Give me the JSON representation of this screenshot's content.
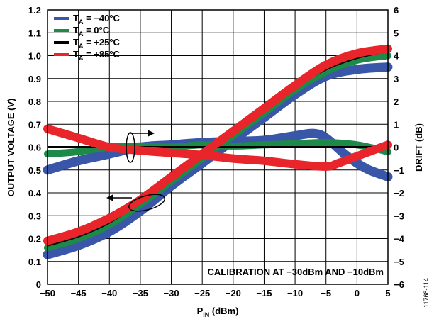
{
  "chart_data": {
    "type": "line",
    "xlabel": "P",
    "xlabel_sub": "IN",
    "xlabel_unit": " (dBm)",
    "ylabel_left": "OUTPUT VOLTAGE (V)",
    "ylabel_right": "DRIFT (dB)",
    "xlim": [
      -50,
      5
    ],
    "ylim_left": [
      0,
      1.2
    ],
    "ylim_right": [
      -6,
      6
    ],
    "grid": true,
    "legend_position": "top-left",
    "x_ticks": [
      "−50",
      "−45",
      "−40",
      "−35",
      "−30",
      "−25",
      "−20",
      "−15",
      "−10",
      "−5",
      "0",
      "5"
    ],
    "y_left_ticks": [
      "0",
      "0.1",
      "0.2",
      "0.3",
      "0.4",
      "0.5",
      "0.6",
      "0.7",
      "0.8",
      "0.9",
      "1.0",
      "1.1",
      "1.2"
    ],
    "y_right_ticks": [
      "−6",
      "−5",
      "−4",
      "−3",
      "−2",
      "−1",
      "0",
      "1",
      "2",
      "3",
      "4",
      "5",
      "6"
    ],
    "annotation": "CALIBRATION AT −30dBm AND −10dBm",
    "figure_id": "11768-114",
    "series": [
      {
        "name_main": "T",
        "name_sub": "A",
        "name_rest": " = −40°C",
        "color": "#3a56a8",
        "voltage": {
          "x": [
            -50,
            -45,
            -40,
            -35,
            -30,
            -25,
            -20,
            -15,
            -10,
            -5,
            0,
            5
          ],
          "y": [
            0.13,
            0.17,
            0.23,
            0.32,
            0.43,
            0.53,
            0.63,
            0.73,
            0.83,
            0.91,
            0.94,
            0.95
          ]
        },
        "drift": {
          "x": [
            -50,
            -45,
            -40,
            -35,
            -30,
            -25,
            -20,
            -15,
            -10,
            -7,
            -5,
            -2,
            0,
            2,
            5
          ],
          "y": [
            -1.0,
            -0.6,
            -0.3,
            0.0,
            0.1,
            0.2,
            0.25,
            0.3,
            0.5,
            0.6,
            0.4,
            -0.3,
            -0.7,
            -1.0,
            -1.3
          ]
        }
      },
      {
        "name_main": "T",
        "name_sub": "A",
        "name_rest": " = 0°C",
        "color": "#1e8a4a",
        "voltage": {
          "x": [
            -50,
            -45,
            -40,
            -35,
            -30,
            -25,
            -20,
            -15,
            -10,
            -5,
            0,
            5
          ],
          "y": [
            0.16,
            0.2,
            0.26,
            0.35,
            0.45,
            0.55,
            0.65,
            0.75,
            0.85,
            0.93,
            0.98,
            1.0
          ]
        },
        "drift": {
          "x": [
            -50,
            -45,
            -40,
            -35,
            -30,
            -25,
            -20,
            -15,
            -10,
            -5,
            0,
            5
          ],
          "y": [
            -0.3,
            -0.2,
            0.0,
            0.05,
            0.0,
            0.1,
            0.05,
            0.1,
            0.15,
            0.2,
            0.1,
            -0.2
          ]
        }
      },
      {
        "name_main": "T",
        "name_sub": "A",
        "name_rest": " = +25°C",
        "color": "#000000",
        "voltage": {
          "x": [
            -50,
            -45,
            -40,
            -35,
            -30,
            -25,
            -20,
            -15,
            -10,
            -5,
            0,
            5
          ],
          "y": [
            0.17,
            0.21,
            0.27,
            0.36,
            0.46,
            0.56,
            0.66,
            0.76,
            0.86,
            0.94,
            0.99,
            1.02
          ]
        },
        "drift": {
          "x": [
            -50,
            5
          ],
          "y": [
            0.0,
            0.0
          ]
        }
      },
      {
        "name_main": "T",
        "name_sub": "A",
        "name_rest": " = +85°C",
        "color": "#e8252a",
        "voltage": {
          "x": [
            -50,
            -45,
            -40,
            -35,
            -30,
            -25,
            -20,
            -15,
            -10,
            -5,
            0,
            5
          ],
          "y": [
            0.19,
            0.23,
            0.29,
            0.37,
            0.47,
            0.57,
            0.67,
            0.77,
            0.87,
            0.96,
            1.01,
            1.03
          ]
        },
        "drift": {
          "x": [
            -50,
            -45,
            -40,
            -35,
            -30,
            -25,
            -20,
            -15,
            -10,
            -5,
            -3,
            0,
            2,
            5
          ],
          "y": [
            0.8,
            0.4,
            0.0,
            -0.15,
            -0.25,
            -0.35,
            -0.5,
            -0.6,
            -0.75,
            -0.85,
            -0.7,
            -0.4,
            -0.2,
            0.1
          ]
        }
      }
    ]
  }
}
